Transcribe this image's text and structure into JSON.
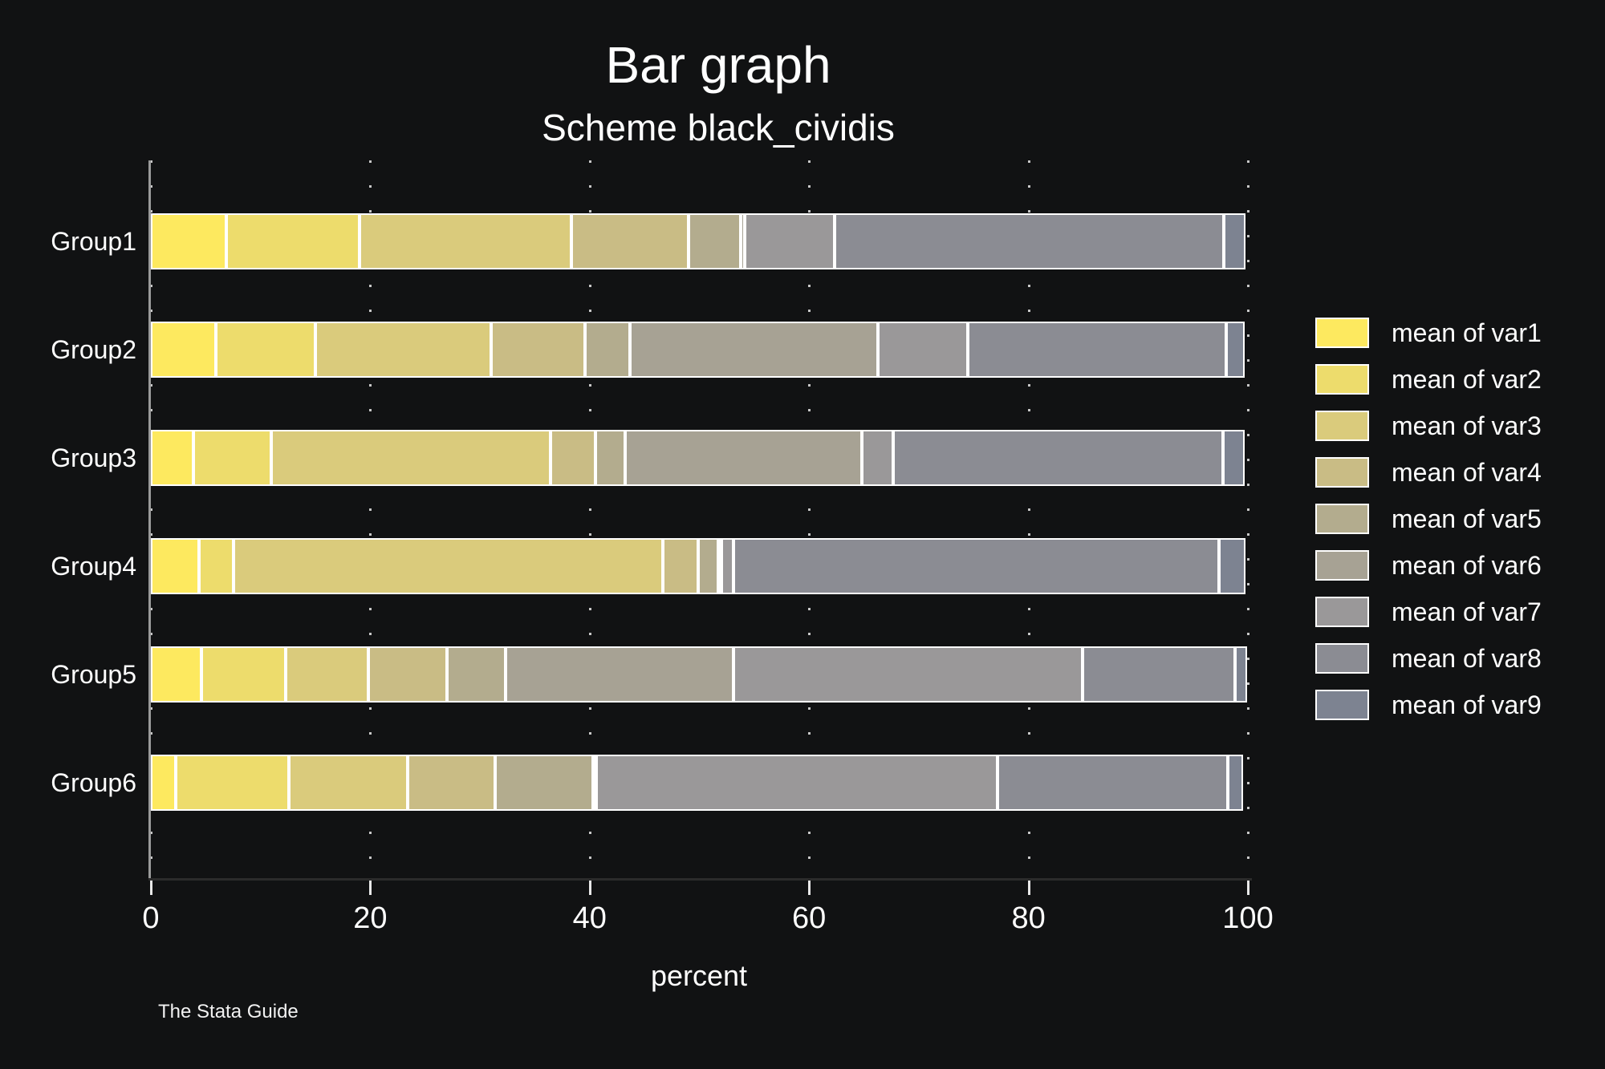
{
  "title": "Bar graph",
  "subtitle": "Scheme black_cividis",
  "footer": "The Stata Guide",
  "colors": {
    "background": "#111213",
    "text": "#ffffff",
    "y_axis_line": "#9a9a9a",
    "x_axis_line": "#2b2b2b",
    "grid_dots": "#e8e8e8",
    "segment_outline": "#ffffff"
  },
  "chart_data": {
    "type": "bar",
    "stacked": true,
    "orientation": "horizontal",
    "title": "Bar graph",
    "subtitle": "Scheme black_cividis",
    "xlabel": "percent",
    "xlim": [
      0,
      100
    ],
    "xticks": [
      0,
      20,
      40,
      60,
      80,
      100
    ],
    "grid": "dotted-vertical",
    "legend_position": "right",
    "categories": [
      "Group1",
      "Group2",
      "Group3",
      "Group4",
      "Group5",
      "Group6"
    ],
    "series": [
      {
        "name": "mean of var1",
        "color": "#fde95f",
        "values": [
          6.9,
          5.9,
          3.9,
          4.4,
          4.6,
          2.3
        ]
      },
      {
        "name": "mean of var2",
        "color": "#eddc6c",
        "values": [
          12.1,
          9.1,
          7.1,
          3.1,
          7.7,
          10.3
        ]
      },
      {
        "name": "mean of var3",
        "color": "#dacb7c",
        "values": [
          19.3,
          16.0,
          25.4,
          39.2,
          7.5,
          10.8
        ]
      },
      {
        "name": "mean of var4",
        "color": "#c9bc85",
        "values": [
          10.7,
          8.6,
          4.1,
          3.2,
          7.2,
          8.0
        ]
      },
      {
        "name": "mean of var5",
        "color": "#b3ac8e",
        "values": [
          4.8,
          4.1,
          2.7,
          1.8,
          5.3,
          8.9
        ]
      },
      {
        "name": "mean of var6",
        "color": "#a7a294",
        "values": [
          0.3,
          22.6,
          21.6,
          0.3,
          20.8,
          0.3
        ]
      },
      {
        "name": "mean of var7",
        "color": "#9a9899",
        "values": [
          8.2,
          8.2,
          2.9,
          1.1,
          31.8,
          36.6
        ]
      },
      {
        "name": "mean of var8",
        "color": "#8b8c93",
        "values": [
          35.5,
          23.5,
          30.0,
          44.3,
          13.9,
          21.0
        ]
      },
      {
        "name": "mean of var9",
        "color": "#7d8391",
        "values": [
          2.0,
          1.7,
          2.0,
          2.4,
          1.1,
          1.4
        ]
      }
    ]
  }
}
